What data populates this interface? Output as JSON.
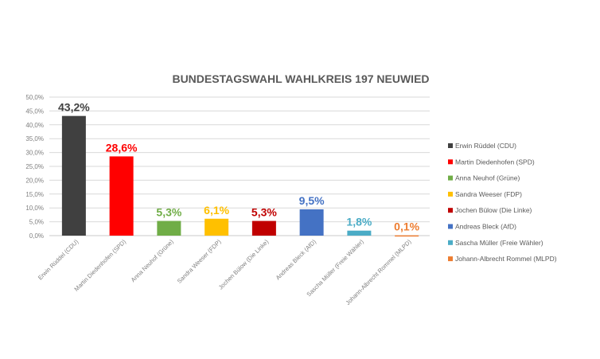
{
  "chart_data": {
    "type": "bar",
    "title": "BUNDESTAGSWAHL WAHLKREIS 197 NEUWIED",
    "xlabel": "",
    "ylabel": "",
    "ylim": [
      0,
      50
    ],
    "yticks": [
      "0,0%",
      "5,0%",
      "10,0%",
      "15,0%",
      "20,0%",
      "25,0%",
      "30,0%",
      "35,0%",
      "40,0%",
      "45,0%",
      "50,0%"
    ],
    "grid": true,
    "legend_position": "right",
    "categories": [
      "Erwin Rüddel (CDU)",
      "Martin Diedenhofen (SPD)",
      "Anna Neuhof (Grüne)",
      "Sandra Weeser (FDP)",
      "Jochen Bülow (Die Linke)",
      "Andreas Bleck (AfD)",
      "Sascha Müller (Freie Wähler)",
      "Johann-Albrecht Rommel (MLPD)"
    ],
    "values": [
      43.2,
      28.6,
      5.3,
      6.1,
      5.3,
      9.5,
      1.8,
      0.1
    ],
    "data_labels": [
      "43,2%",
      "28,6%",
      "5,3%",
      "6,1%",
      "5,3%",
      "9,5%",
      "1,8%",
      "0,1%"
    ],
    "colors": [
      "#404040",
      "#ff0000",
      "#70ad47",
      "#ffc000",
      "#c00000",
      "#4472c4",
      "#4bacc6",
      "#ed7d31"
    ]
  }
}
